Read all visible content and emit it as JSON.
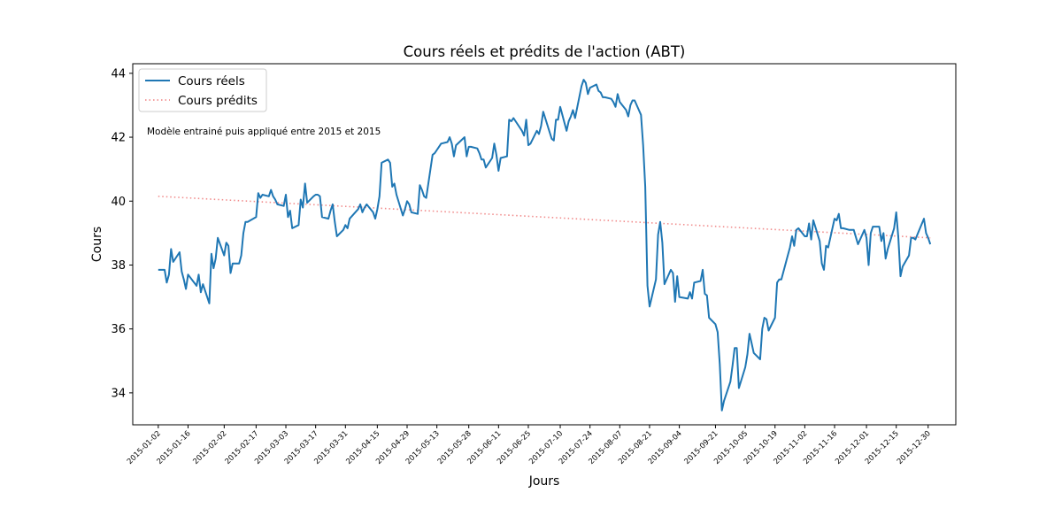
{
  "chart_data": {
    "type": "line",
    "title": "Cours réels et prédits de l'action (ABT)",
    "xlabel": "Jours",
    "ylabel": "Cours",
    "annotation": "Modèle entrainé puis appliqué entre 2015 et 2015",
    "legend_position": "top-left",
    "grid": false,
    "x_range": [
      "2014-12-21",
      "2016-01-12"
    ],
    "ylim": [
      33,
      44.3
    ],
    "y_ticks": [
      34,
      36,
      38,
      40,
      42,
      44
    ],
    "x_tick_labels": [
      "2015-01-02",
      "2015-01-16",
      "2015-02-02",
      "2015-02-17",
      "2015-03-03",
      "2015-03-17",
      "2015-03-31",
      "2015-04-15",
      "2015-04-29",
      "2015-05-13",
      "2015-05-28",
      "2015-06-11",
      "2015-06-25",
      "2015-07-10",
      "2015-07-24",
      "2015-08-07",
      "2015-08-21",
      "2015-09-04",
      "2015-09-21",
      "2015-10-05",
      "2015-10-19",
      "2015-11-02",
      "2015-11-16",
      "2015-12-01",
      "2015-12-15",
      "2015-12-30"
    ],
    "series": [
      {
        "name": "Cours réels",
        "color": "#1f77b4",
        "style": "solid",
        "x": [
          "2015-01-02",
          "2015-01-05",
          "2015-01-06",
          "2015-01-07",
          "2015-01-08",
          "2015-01-09",
          "2015-01-12",
          "2015-01-13",
          "2015-01-14",
          "2015-01-15",
          "2015-01-16",
          "2015-01-20",
          "2015-01-21",
          "2015-01-22",
          "2015-01-23",
          "2015-01-26",
          "2015-01-27",
          "2015-01-28",
          "2015-01-29",
          "2015-01-30",
          "2015-02-02",
          "2015-02-03",
          "2015-02-04",
          "2015-02-05",
          "2015-02-06",
          "2015-02-09",
          "2015-02-10",
          "2015-02-11",
          "2015-02-12",
          "2015-02-13",
          "2015-02-17",
          "2015-02-18",
          "2015-02-19",
          "2015-02-20",
          "2015-02-23",
          "2015-02-24",
          "2015-02-25",
          "2015-02-26",
          "2015-02-27",
          "2015-03-02",
          "2015-03-03",
          "2015-03-04",
          "2015-03-05",
          "2015-03-06",
          "2015-03-09",
          "2015-03-10",
          "2015-03-11",
          "2015-03-12",
          "2015-03-13",
          "2015-03-16",
          "2015-03-17",
          "2015-03-18",
          "2015-03-19",
          "2015-03-20",
          "2015-03-23",
          "2015-03-24",
          "2015-03-25",
          "2015-03-26",
          "2015-03-27",
          "2015-03-30",
          "2015-03-31",
          "2015-04-01",
          "2015-04-02",
          "2015-04-06",
          "2015-04-07",
          "2015-04-08",
          "2015-04-09",
          "2015-04-10",
          "2015-04-13",
          "2015-04-14",
          "2015-04-15",
          "2015-04-16",
          "2015-04-17",
          "2015-04-20",
          "2015-04-21",
          "2015-04-22",
          "2015-04-23",
          "2015-04-24",
          "2015-04-27",
          "2015-04-28",
          "2015-04-29",
          "2015-04-30",
          "2015-05-01",
          "2015-05-04",
          "2015-05-05",
          "2015-05-06",
          "2015-05-07",
          "2015-05-08",
          "2015-05-11",
          "2015-05-12",
          "2015-05-13",
          "2015-05-14",
          "2015-05-15",
          "2015-05-18",
          "2015-05-19",
          "2015-05-20",
          "2015-05-21",
          "2015-05-22",
          "2015-05-26",
          "2015-05-27",
          "2015-05-28",
          "2015-05-29",
          "2015-06-01",
          "2015-06-02",
          "2015-06-03",
          "2015-06-04",
          "2015-06-05",
          "2015-06-08",
          "2015-06-09",
          "2015-06-10",
          "2015-06-11",
          "2015-06-12",
          "2015-06-15",
          "2015-06-16",
          "2015-06-17",
          "2015-06-18",
          "2015-06-19",
          "2015-06-22",
          "2015-06-23",
          "2015-06-24",
          "2015-06-25",
          "2015-06-26",
          "2015-06-29",
          "2015-06-30",
          "2015-07-01",
          "2015-07-02",
          "2015-07-06",
          "2015-07-07",
          "2015-07-08",
          "2015-07-09",
          "2015-07-10",
          "2015-07-13",
          "2015-07-14",
          "2015-07-15",
          "2015-07-16",
          "2015-07-17",
          "2015-07-20",
          "2015-07-21",
          "2015-07-22",
          "2015-07-23",
          "2015-07-24",
          "2015-07-27",
          "2015-07-28",
          "2015-07-29",
          "2015-07-30",
          "2015-07-31",
          "2015-08-03",
          "2015-08-04",
          "2015-08-05",
          "2015-08-06",
          "2015-08-07",
          "2015-08-10",
          "2015-08-11",
          "2015-08-12",
          "2015-08-13",
          "2015-08-14",
          "2015-08-17",
          "2015-08-18",
          "2015-08-19",
          "2015-08-20",
          "2015-08-21",
          "2015-08-24",
          "2015-08-25",
          "2015-08-26",
          "2015-08-27",
          "2015-08-28",
          "2015-08-31",
          "2015-09-01",
          "2015-09-02",
          "2015-09-03",
          "2015-09-04",
          "2015-09-08",
          "2015-09-09",
          "2015-09-10",
          "2015-09-11",
          "2015-09-14",
          "2015-09-15",
          "2015-09-16",
          "2015-09-17",
          "2015-09-18",
          "2015-09-21",
          "2015-09-22",
          "2015-09-23",
          "2015-09-24",
          "2015-09-25",
          "2015-09-28",
          "2015-09-29",
          "2015-09-30",
          "2015-10-01",
          "2015-10-02",
          "2015-10-05",
          "2015-10-06",
          "2015-10-07",
          "2015-10-08",
          "2015-10-09",
          "2015-10-12",
          "2015-10-13",
          "2015-10-14",
          "2015-10-15",
          "2015-10-16",
          "2015-10-19",
          "2015-10-20",
          "2015-10-21",
          "2015-10-22",
          "2015-10-23",
          "2015-10-26",
          "2015-10-27",
          "2015-10-28",
          "2015-10-29",
          "2015-10-30",
          "2015-11-02",
          "2015-11-03",
          "2015-11-04",
          "2015-11-05",
          "2015-11-06",
          "2015-11-09",
          "2015-11-10",
          "2015-11-11",
          "2015-11-12",
          "2015-11-13",
          "2015-11-16",
          "2015-11-17",
          "2015-11-18",
          "2015-11-19",
          "2015-11-20",
          "2015-11-23",
          "2015-11-24",
          "2015-11-25",
          "2015-11-27",
          "2015-11-30",
          "2015-12-01",
          "2015-12-02",
          "2015-12-03",
          "2015-12-04",
          "2015-12-07",
          "2015-12-08",
          "2015-12-09",
          "2015-12-10",
          "2015-12-11",
          "2015-12-14",
          "2015-12-15",
          "2015-12-16",
          "2015-12-17",
          "2015-12-18",
          "2015-12-21",
          "2015-12-22",
          "2015-12-23",
          "2015-12-24",
          "2015-12-28",
          "2015-12-29",
          "2015-12-30",
          "2015-12-31"
        ],
        "y": [
          37.85,
          37.85,
          37.45,
          37.7,
          38.5,
          38.1,
          38.4,
          37.8,
          37.55,
          37.25,
          37.7,
          37.35,
          37.7,
          37.15,
          37.4,
          36.8,
          38.35,
          37.9,
          38.2,
          38.85,
          38.3,
          38.7,
          38.6,
          37.75,
          38.05,
          38.05,
          38.3,
          39.0,
          39.35,
          39.35,
          39.5,
          40.25,
          40.1,
          40.2,
          40.15,
          40.35,
          40.15,
          40.05,
          39.9,
          39.85,
          40.2,
          39.5,
          39.7,
          39.15,
          39.25,
          40.05,
          39.8,
          40.55,
          39.95,
          40.15,
          40.2,
          40.2,
          40.15,
          39.5,
          39.45,
          39.7,
          39.9,
          39.35,
          38.9,
          39.1,
          39.25,
          39.15,
          39.45,
          39.75,
          39.9,
          39.65,
          39.8,
          39.9,
          39.65,
          39.45,
          39.75,
          40.15,
          41.2,
          41.3,
          41.2,
          40.45,
          40.55,
          40.2,
          39.55,
          39.75,
          40.0,
          39.9,
          39.65,
          39.6,
          40.5,
          40.35,
          40.15,
          40.1,
          41.45,
          41.5,
          41.6,
          41.7,
          41.8,
          41.85,
          42.0,
          41.8,
          41.4,
          41.75,
          42.0,
          41.4,
          41.7,
          41.7,
          41.65,
          41.5,
          41.3,
          41.3,
          41.05,
          41.35,
          41.8,
          41.45,
          40.95,
          41.35,
          41.4,
          42.55,
          42.5,
          42.6,
          42.5,
          42.2,
          42.05,
          42.55,
          41.75,
          41.8,
          42.2,
          42.1,
          42.35,
          42.8,
          41.95,
          41.9,
          42.55,
          42.55,
          42.95,
          42.2,
          42.5,
          42.65,
          42.85,
          42.6,
          43.6,
          43.8,
          43.7,
          43.35,
          43.55,
          43.65,
          43.45,
          43.4,
          43.25,
          43.25,
          43.2,
          43.1,
          42.95,
          43.35,
          43.1,
          42.85,
          42.65,
          43.0,
          43.15,
          43.15,
          42.7,
          41.75,
          40.45,
          37.35,
          36.7,
          37.55,
          38.95,
          39.35,
          38.7,
          37.4,
          37.85,
          37.75,
          36.85,
          37.65,
          37.0,
          36.95,
          37.15,
          36.95,
          37.45,
          37.5,
          37.85,
          37.1,
          37.05,
          36.35,
          36.15,
          35.9,
          34.9,
          33.45,
          33.75,
          34.35,
          34.85,
          35.4,
          35.4,
          34.15,
          34.8,
          35.2,
          35.85,
          35.55,
          35.25,
          35.05,
          36.0,
          36.35,
          36.3,
          35.95,
          36.35,
          37.45,
          37.55,
          37.55,
          37.8,
          38.55,
          38.9,
          38.6,
          39.1,
          39.15,
          38.9,
          38.9,
          39.3,
          38.8,
          39.4,
          38.75,
          38.05,
          37.85,
          38.6,
          38.55,
          39.45,
          39.4,
          39.6,
          39.15,
          39.15,
          39.1,
          39.1,
          39.1,
          38.65,
          39.1,
          38.85,
          38.0,
          39.0,
          39.2,
          39.2,
          38.75,
          39.0,
          38.2,
          38.5,
          39.15,
          39.65,
          38.85,
          37.65,
          37.95,
          38.3,
          38.85,
          38.85,
          38.8,
          39.45,
          39.0,
          38.85,
          38.65
        ]
      },
      {
        "name": "Cours prédits",
        "color": "#f08080",
        "style": "dotted",
        "x": [
          "2015-01-02",
          "2015-12-31"
        ],
        "y": [
          40.15,
          38.85
        ]
      }
    ]
  }
}
